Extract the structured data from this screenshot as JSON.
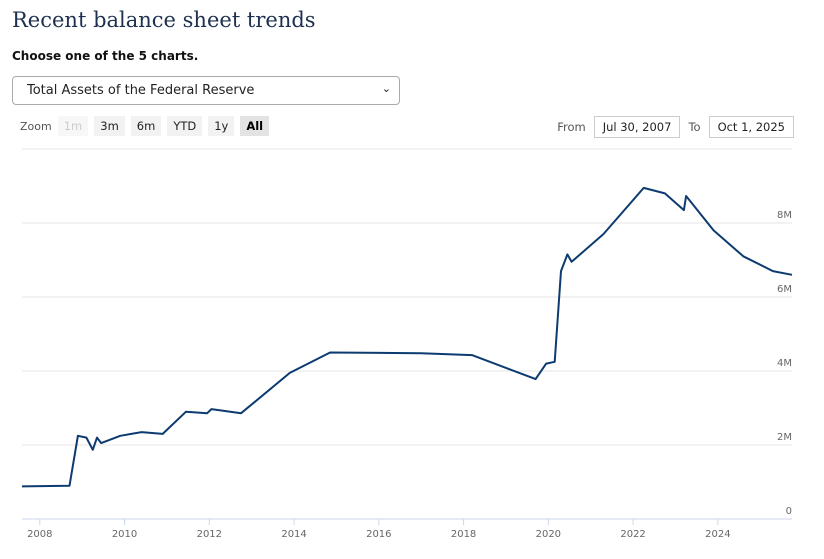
{
  "title": "Recent balance sheet trends",
  "subtitle": "Choose one of the 5 charts.",
  "select": {
    "value": "Total Assets of the Federal Reserve"
  },
  "zoom": {
    "label": "Zoom",
    "buttons": [
      "1m",
      "3m",
      "6m",
      "YTD",
      "1y",
      "All"
    ],
    "selected": "All",
    "disabled": [
      "1m"
    ]
  },
  "range": {
    "from_label": "From",
    "from": "Jul 30, 2007",
    "to_label": "To",
    "to": "Oct 1, 2025"
  },
  "chart_data": {
    "type": "line",
    "color": "#0d3b70",
    "grid": true,
    "xlim": [
      2007.58,
      2025.75
    ],
    "ylim": [
      0,
      10
    ],
    "xticks": [
      "2008",
      "2010",
      "2012",
      "2014",
      "2016",
      "2018",
      "2020",
      "2022",
      "2024"
    ],
    "yticks": [
      "0",
      "2M",
      "4M",
      "6M",
      "8M"
    ],
    "ytick_values": [
      0,
      2,
      4,
      6,
      8
    ],
    "unit_note": "values in millions",
    "series": [
      {
        "x": [
          2007.58,
          2008.7,
          2008.9,
          2009.1,
          2009.25,
          2009.35,
          2009.45,
          2009.9,
          2010.4,
          2010.9,
          2011.45,
          2011.95,
          2012.05,
          2012.75,
          2013.9,
          2014.85,
          2017.0,
          2018.2,
          2019.7,
          2019.95,
          2020.15,
          2020.3,
          2020.45,
          2020.55,
          2021.3,
          2022.25,
          2022.75,
          2023.2,
          2023.25,
          2023.9,
          2024.6,
          2025.3,
          2025.75
        ],
        "y": [
          0.88,
          0.9,
          2.25,
          2.2,
          1.87,
          2.2,
          2.05,
          2.25,
          2.35,
          2.3,
          2.9,
          2.86,
          2.97,
          2.86,
          3.95,
          4.5,
          4.48,
          4.43,
          3.78,
          4.2,
          4.25,
          6.7,
          7.15,
          6.95,
          7.7,
          8.95,
          8.8,
          8.35,
          8.73,
          7.8,
          7.1,
          6.7,
          6.6
        ]
      }
    ]
  }
}
